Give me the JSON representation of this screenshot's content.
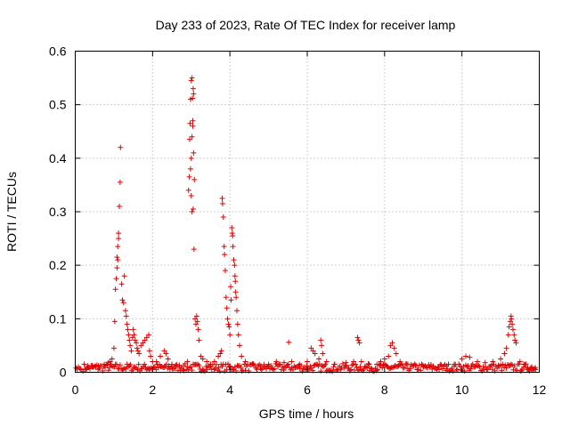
{
  "chart_data": {
    "type": "scatter",
    "title": "Day 233 of 2023, Rate Of TEC Index for receiver lamp",
    "xlabel": "GPS time / hours",
    "ylabel": "ROTI / TECUs",
    "xlim": [
      0,
      12
    ],
    "ylim": [
      0,
      0.6
    ],
    "xticks": [
      0,
      2,
      4,
      6,
      8,
      10,
      12
    ],
    "xtick_labels": [
      "0",
      "2",
      "4",
      "6",
      "8",
      "10",
      "12"
    ],
    "yticks": [
      0,
      0.1,
      0.2,
      0.3,
      0.4,
      0.5,
      0.6
    ],
    "ytick_labels": [
      "0",
      "0.1",
      "0.2",
      "0.3",
      "0.4",
      "0.5",
      "0.6"
    ],
    "grid": true,
    "marker": "plus",
    "color": "#e00000",
    "points": [
      [
        0.02,
        0.008
      ],
      [
        0.05,
        0.006
      ],
      [
        0.08,
        0.01
      ],
      [
        0.12,
        0.007
      ],
      [
        0.15,
        0.005
      ],
      [
        0.3,
        0.008
      ],
      [
        0.45,
        0.01
      ],
      [
        0.6,
        0.012
      ],
      [
        0.75,
        0.015
      ],
      [
        0.85,
        0.018
      ],
      [
        0.9,
        0.02
      ],
      [
        0.95,
        0.025
      ],
      [
        1.0,
        0.045
      ],
      [
        1.02,
        0.095
      ],
      [
        1.04,
        0.155
      ],
      [
        1.06,
        0.175
      ],
      [
        1.08,
        0.195
      ],
      [
        1.08,
        0.215
      ],
      [
        1.1,
        0.21
      ],
      [
        1.1,
        0.235
      ],
      [
        1.12,
        0.25
      ],
      [
        1.12,
        0.26
      ],
      [
        1.14,
        0.31
      ],
      [
        1.16,
        0.355
      ],
      [
        1.17,
        0.42
      ],
      [
        1.2,
        0.165
      ],
      [
        1.22,
        0.135
      ],
      [
        1.25,
        0.13
      ],
      [
        1.27,
        0.18
      ],
      [
        1.3,
        0.115
      ],
      [
        1.32,
        0.105
      ],
      [
        1.34,
        0.09
      ],
      [
        1.36,
        0.08
      ],
      [
        1.38,
        0.07
      ],
      [
        1.4,
        0.06
      ],
      [
        1.42,
        0.05
      ],
      [
        1.45,
        0.04
      ],
      [
        1.48,
        0.065
      ],
      [
        1.5,
        0.08
      ],
      [
        1.52,
        0.07
      ],
      [
        1.55,
        0.06
      ],
      [
        1.58,
        0.055
      ],
      [
        1.6,
        0.045
      ],
      [
        1.62,
        0.04
      ],
      [
        1.65,
        0.035
      ],
      [
        1.7,
        0.05
      ],
      [
        1.75,
        0.055
      ],
      [
        1.8,
        0.06
      ],
      [
        1.85,
        0.065
      ],
      [
        1.9,
        0.07
      ],
      [
        1.92,
        0.04
      ],
      [
        1.95,
        0.03
      ],
      [
        2.0,
        0.02
      ],
      [
        2.1,
        0.02
      ],
      [
        2.2,
        0.03
      ],
      [
        2.3,
        0.04
      ],
      [
        2.35,
        0.035
      ],
      [
        2.4,
        0.025
      ],
      [
        2.5,
        0.015
      ],
      [
        2.6,
        0.012
      ],
      [
        2.7,
        0.01
      ],
      [
        2.8,
        0.012
      ],
      [
        2.9,
        0.02
      ],
      [
        2.93,
        0.34
      ],
      [
        2.95,
        0.365
      ],
      [
        2.96,
        0.435
      ],
      [
        2.97,
        0.465
      ],
      [
        2.98,
        0.51
      ],
      [
        3.0,
        0.545
      ],
      [
        3.02,
        0.55
      ],
      [
        3.03,
        0.512
      ],
      [
        3.04,
        0.47
      ],
      [
        3.05,
        0.53
      ],
      [
        3.06,
        0.52
      ],
      [
        2.98,
        0.38
      ],
      [
        3.0,
        0.4
      ],
      [
        3.02,
        0.44
      ],
      [
        3.04,
        0.46
      ],
      [
        3.06,
        0.41
      ],
      [
        3.08,
        0.36
      ],
      [
        3.0,
        0.33
      ],
      [
        3.02,
        0.3
      ],
      [
        3.05,
        0.305
      ],
      [
        3.07,
        0.23
      ],
      [
        3.1,
        0.1
      ],
      [
        3.12,
        0.09
      ],
      [
        3.14,
        0.105
      ],
      [
        3.16,
        0.095
      ],
      [
        3.18,
        0.08
      ],
      [
        3.2,
        0.06
      ],
      [
        3.25,
        0.03
      ],
      [
        3.3,
        0.025
      ],
      [
        3.4,
        0.02
      ],
      [
        3.5,
        0.015
      ],
      [
        3.6,
        0.02
      ],
      [
        3.7,
        0.03
      ],
      [
        3.75,
        0.035
      ],
      [
        3.78,
        0.04
      ],
      [
        3.8,
        0.325
      ],
      [
        3.81,
        0.315
      ],
      [
        3.83,
        0.29
      ],
      [
        3.85,
        0.235
      ],
      [
        3.86,
        0.22
      ],
      [
        3.88,
        0.19
      ],
      [
        3.9,
        0.14
      ],
      [
        3.92,
        0.12
      ],
      [
        3.94,
        0.1
      ],
      [
        3.96,
        0.09
      ],
      [
        3.98,
        0.085
      ],
      [
        4.0,
        0.07
      ],
      [
        4.02,
        0.16
      ],
      [
        4.03,
        0.135
      ],
      [
        4.05,
        0.27
      ],
      [
        4.06,
        0.26
      ],
      [
        4.07,
        0.255
      ],
      [
        4.08,
        0.235
      ],
      [
        4.1,
        0.21
      ],
      [
        4.12,
        0.2
      ],
      [
        4.13,
        0.18
      ],
      [
        4.14,
        0.17
      ],
      [
        4.15,
        0.15
      ],
      [
        4.16,
        0.14
      ],
      [
        4.18,
        0.115
      ],
      [
        4.2,
        0.09
      ],
      [
        4.22,
        0.07
      ],
      [
        4.25,
        0.05
      ],
      [
        4.3,
        0.03
      ],
      [
        4.4,
        0.02
      ],
      [
        4.6,
        0.015
      ],
      [
        4.8,
        0.012
      ],
      [
        5.0,
        0.015
      ],
      [
        5.2,
        0.02
      ],
      [
        5.4,
        0.018
      ],
      [
        5.52,
        0.056
      ],
      [
        5.6,
        0.02
      ],
      [
        5.8,
        0.015
      ],
      [
        6.0,
        0.02
      ],
      [
        6.1,
        0.045
      ],
      [
        6.15,
        0.04
      ],
      [
        6.2,
        0.035
      ],
      [
        6.3,
        0.025
      ],
      [
        6.35,
        0.06
      ],
      [
        6.37,
        0.05
      ],
      [
        6.4,
        0.035
      ],
      [
        6.5,
        0.02
      ],
      [
        6.7,
        0.015
      ],
      [
        7.0,
        0.018
      ],
      [
        7.2,
        0.02
      ],
      [
        7.3,
        0.065
      ],
      [
        7.32,
        0.06
      ],
      [
        7.35,
        0.055
      ],
      [
        7.4,
        0.02
      ],
      [
        7.6,
        0.015
      ],
      [
        7.8,
        0.015
      ],
      [
        7.9,
        0.02
      ],
      [
        8.0,
        0.025
      ],
      [
        8.1,
        0.03
      ],
      [
        8.15,
        0.05
      ],
      [
        8.2,
        0.055
      ],
      [
        8.25,
        0.045
      ],
      [
        8.3,
        0.035
      ],
      [
        8.4,
        0.02
      ],
      [
        8.6,
        0.015
      ],
      [
        8.8,
        0.012
      ],
      [
        9.0,
        0.01
      ],
      [
        9.2,
        0.012
      ],
      [
        9.4,
        0.01
      ],
      [
        9.6,
        0.012
      ],
      [
        9.8,
        0.015
      ],
      [
        10.0,
        0.025
      ],
      [
        10.1,
        0.03
      ],
      [
        10.2,
        0.028
      ],
      [
        10.4,
        0.02
      ],
      [
        10.6,
        0.018
      ],
      [
        10.8,
        0.02
      ],
      [
        11.0,
        0.025
      ],
      [
        11.1,
        0.035
      ],
      [
        11.15,
        0.045
      ],
      [
        11.2,
        0.07
      ],
      [
        11.22,
        0.085
      ],
      [
        11.25,
        0.095
      ],
      [
        11.27,
        0.105
      ],
      [
        11.28,
        0.1
      ],
      [
        11.3,
        0.09
      ],
      [
        11.32,
        0.08
      ],
      [
        11.35,
        0.07
      ],
      [
        11.37,
        0.06
      ],
      [
        11.4,
        0.055
      ],
      [
        11.5,
        0.02
      ],
      [
        11.6,
        0.01
      ],
      [
        11.7,
        0.008
      ],
      [
        11.8,
        0.006
      ],
      [
        11.9,
        0.005
      ]
    ]
  }
}
